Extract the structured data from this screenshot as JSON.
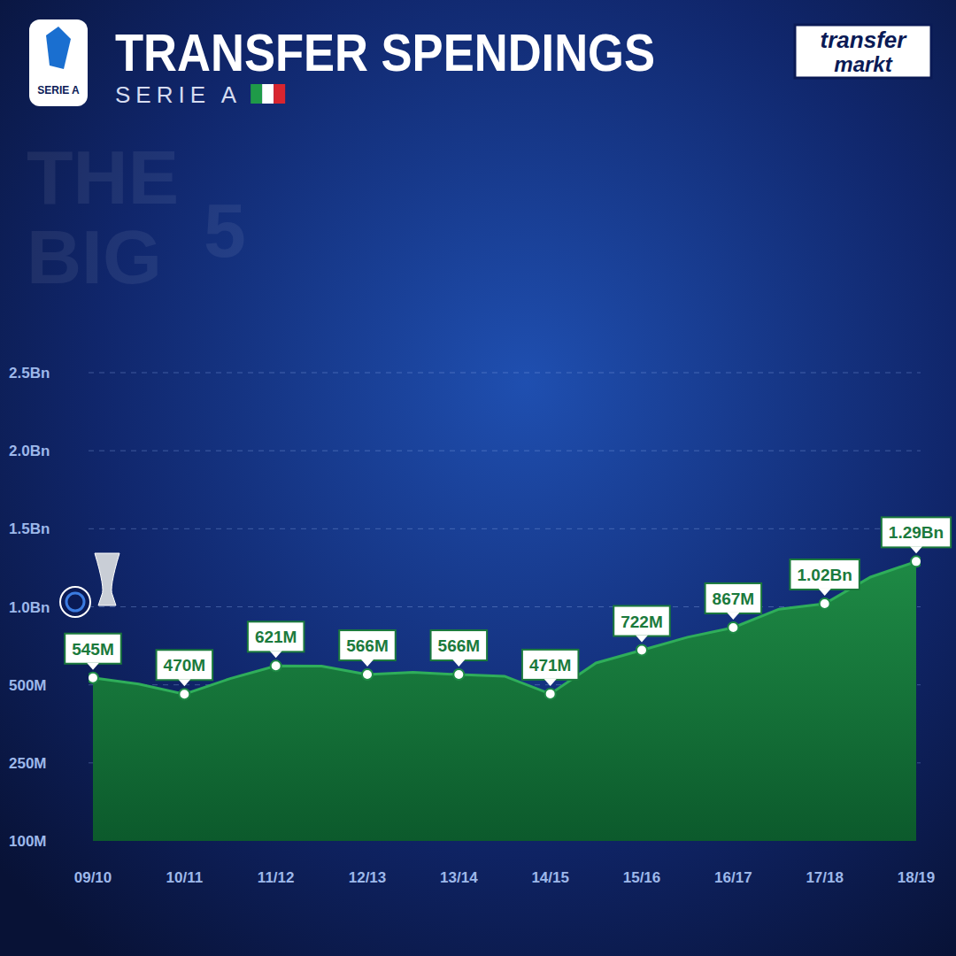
{
  "chart_data": {
    "type": "area",
    "title": "TRANSFER SPENDINGS",
    "subtitle": "SERIE A",
    "badge": "SERIE A",
    "watermark": "THE BIG 5",
    "logo_text": [
      "transfer",
      "markt"
    ],
    "categories": [
      "09/10",
      null,
      "10/11",
      null,
      "11/12",
      null,
      "12/13",
      null,
      "13/14",
      null,
      "14/15",
      null,
      "15/16",
      null,
      "16/17",
      null,
      "17/18",
      null,
      "18/19"
    ],
    "values": [
      545,
      505,
      470,
      540,
      621,
      620,
      566,
      580,
      566,
      555,
      471,
      640,
      722,
      805,
      867,
      985,
      1020,
      1190,
      1290
    ],
    "value_labels": [
      "545M",
      null,
      "470M",
      null,
      "621M",
      null,
      "566M",
      null,
      "566M",
      null,
      "471M",
      null,
      "722M",
      null,
      "867M",
      null,
      "1.02Bn",
      null,
      "1.29Bn"
    ],
    "ylim": [
      100,
      2500
    ],
    "yticks": [
      {
        "value": 100,
        "label": "100M"
      },
      {
        "value": 250,
        "label": "250M"
      },
      {
        "value": 500,
        "label": "500M"
      },
      {
        "value": 1000,
        "label": "1.0Bn"
      },
      {
        "value": 1500,
        "label": "1.5Bn"
      },
      {
        "value": 2000,
        "label": "2.0Bn"
      },
      {
        "value": 2500,
        "label": "2.5Bn"
      }
    ],
    "grid": true,
    "data_labels": true,
    "color": "#1e8a45"
  }
}
